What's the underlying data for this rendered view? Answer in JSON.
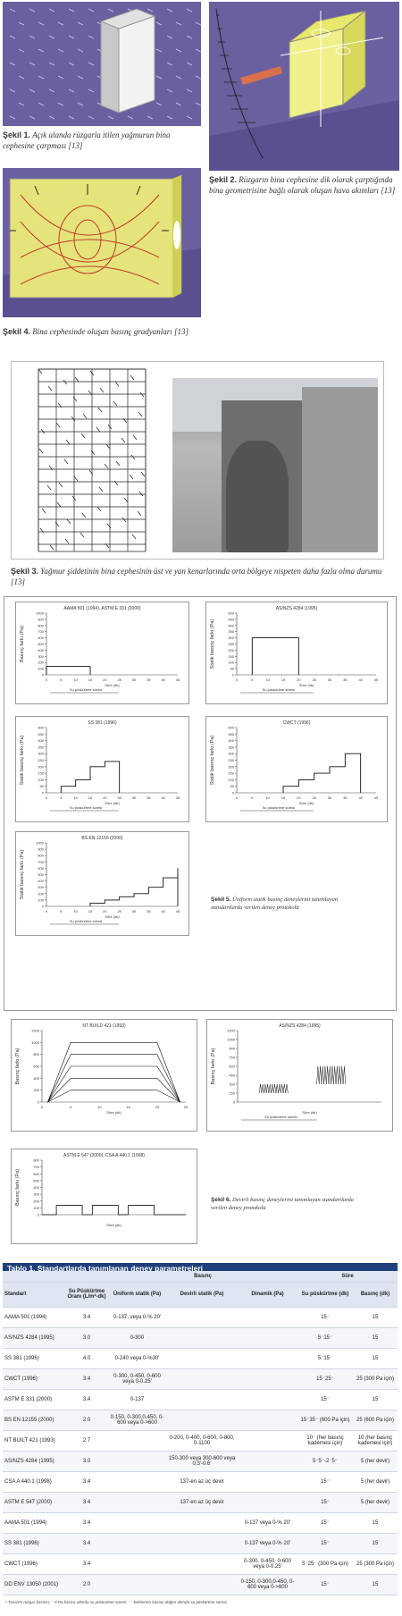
{
  "figures": {
    "fig1": {
      "label": "Şekil 1.",
      "text": "Açık alanda rüzgarla itilen yağmurun bina cephesine çarpması [13]"
    },
    "fig2": {
      "label": "Şekil 2.",
      "text": "Rüzgarın bina cephesine dik olarak çarptığında bina geometrisine bağlı olarak oluşan hava akımları [13]"
    },
    "fig4": {
      "label": "Şekil 4.",
      "text": "Bina cephesinde oluşan basınç gradyanları [13]"
    },
    "fig3": {
      "label": "Şekil 3.",
      "text": "Yağmur şiddetinin bina cephesinin üst ve yan kenarlarında orta bölgeye nispeten daha fazla olma durumu [13]"
    },
    "fig5": {
      "label": "Şekil 5.",
      "text": "Üniform statik basınç deneylerini tanımlayan standartlarda verilen deney protokolü"
    },
    "fig6": {
      "label": "Şekil 6.",
      "text": "Devirli basınç deneylerini tanımlayan standartlarda verilen deney protokolü"
    }
  },
  "fig5_charts": [
    {
      "title": "AAMA 501 (1994), ASTM E 331 (2000)",
      "ylabel": "Basınç farkı (Pa)",
      "xlabel": "Süre (dk)",
      "yticks": [
        "0",
        "100",
        "200",
        "300",
        "400",
        "500",
        "600",
        "700",
        "800",
        "900",
        "1000"
      ],
      "xticks": [
        "0",
        "5",
        "10",
        "15",
        "20",
        "25",
        "30",
        "35",
        "40",
        "45"
      ],
      "note": "Su püskürtme süresi",
      "steps": [
        [
          0,
          15,
          137
        ]
      ]
    },
    {
      "title": "AS/NZS 4284 (1995)",
      "ylabel": "Statik basınç farkı (Pa)",
      "xlabel": "Süre (dk)",
      "yticks": [
        "0",
        "50",
        "100",
        "150",
        "200",
        "250",
        "300",
        "350",
        "400",
        "450",
        "500"
      ],
      "xticks": [
        "0",
        "5",
        "10",
        "15",
        "20",
        "25",
        "30",
        "35",
        "40",
        "45"
      ],
      "note": "Su püskürtme süresi",
      "steps": [
        [
          5,
          20,
          300
        ]
      ]
    },
    {
      "title": "SS 381 (1996)",
      "ylabel": "Statik basınç farkı (Pa)",
      "xlabel": "Süre (dk)",
      "yticks": [
        "0",
        "50",
        "100",
        "150",
        "200",
        "250",
        "300",
        "350",
        "400",
        "450",
        "500"
      ],
      "xticks": [
        "0",
        "5",
        "10",
        "15",
        "20",
        "25",
        "30",
        "35",
        "40",
        "45"
      ],
      "note": "Su püskürtme süresi",
      "steps": [
        [
          5,
          10,
          50
        ],
        [
          10,
          15,
          100
        ],
        [
          15,
          20,
          200
        ],
        [
          20,
          25,
          240
        ]
      ]
    },
    {
      "title": "CWCT (1996)",
      "ylabel": "Statik basınç farkı (Pa)",
      "xlabel": "Süre (dk)",
      "yticks": [
        "0",
        "50",
        "100",
        "150",
        "200",
        "250",
        "300",
        "350",
        "400",
        "450",
        "500"
      ],
      "xticks": [
        "0",
        "5",
        "10",
        "15",
        "20",
        "25",
        "30",
        "35",
        "40",
        "45"
      ],
      "note": "Su püskürtme süresi",
      "steps": [
        [
          15,
          20,
          50
        ],
        [
          20,
          25,
          100
        ],
        [
          25,
          30,
          150
        ],
        [
          30,
          35,
          200
        ],
        [
          35,
          40,
          300
        ]
      ]
    },
    {
      "title": "BS EN 12155 (2000)",
      "ylabel": "Statik basınç farkı (Pa)",
      "xlabel": "Süre (dk)",
      "yticks": [
        "0",
        "100",
        "200",
        "300",
        "400",
        "500",
        "600",
        "700",
        "800",
        "900",
        "1000"
      ],
      "xticks": [
        "0",
        "5",
        "10",
        "15",
        "20",
        "25",
        "30",
        "35",
        "40",
        "45"
      ],
      "note": "Su püskürtme süresi",
      "steps": [
        [
          15,
          20,
          50
        ],
        [
          20,
          25,
          100
        ],
        [
          25,
          30,
          150
        ],
        [
          30,
          35,
          200
        ],
        [
          35,
          40,
          300
        ],
        [
          40,
          45,
          450
        ],
        [
          45,
          50,
          600
        ]
      ]
    }
  ],
  "fig6_charts": [
    {
      "title": "NT BUILD 421 (1993)",
      "ylabel": "Basınç farkı (Pa)",
      "xlabel": "Süre (dk)",
      "yticks": [
        "0",
        "200",
        "400",
        "600",
        "800",
        "1000",
        "1200"
      ],
      "xticks": [
        "0",
        "5",
        "10",
        "15",
        "20",
        "25"
      ]
    },
    {
      "title": "AS/NZS 4284 (1995)",
      "ylabel": "Basınç farkı (Pa)",
      "xlabel": "Süre (dk)",
      "yticks": [
        "0",
        "150",
        "300",
        "450",
        "600",
        "750",
        "900",
        "1050",
        "1200"
      ],
      "xticks": [],
      "note": "Su püskürtme süresi"
    },
    {
      "title": "ASTM E 547 (2000), CSA A 440.1 (1998)",
      "ylabel": "Basınç farkı (Pa)",
      "xlabel": "Süre (dk)",
      "yticks": [
        "0",
        "100",
        "200",
        "300",
        "400",
        "500",
        "600",
        "700",
        "800"
      ],
      "xticks": []
    }
  ],
  "table": {
    "title": "Tablo 1. Standartlarda tanımlanan deney parametreleri",
    "group_basinc": "Basınç",
    "group_sure": "Süre",
    "headers": [
      "Standart",
      "Su Püskürtme Oranı (L/m²-dk)",
      "Üniform statik (Pa)",
      "Devirli statik (Pa)",
      "Dinamik (Pa)",
      "Su püskürtme (dk)",
      "Basınç (dk)"
    ],
    "rows": [
      [
        "AAMA 501 (1994)",
        "3.4",
        "0-137, veya 0-% 20'",
        "",
        "",
        "15⁻",
        "15"
      ],
      [
        "AS/NZS 4284 (1995)",
        "3.0",
        "0-300",
        "",
        "",
        "5⁻15⁻",
        "15"
      ],
      [
        "SS 381 (1996)",
        "4.0",
        "0-240 veya 0-%30'",
        "",
        "",
        "5⁻15⁻",
        "15"
      ],
      [
        "CWCT (1996)",
        "3.4",
        "0-300, 0-450, 0-600 veya 0-0.25'",
        "",
        "",
        "15⁻25⁻",
        "25 (300 Pa için)"
      ],
      [
        "ASTM E 331 (2000)",
        "3.4",
        "0-137",
        "",
        "",
        "15⁻",
        "15"
      ],
      [
        "BS EN 12155 (2000)",
        "2.0",
        "0-150, 0-300,0-450, 0-600 veya 0->600",
        "",
        "",
        "15⁻35⁻ (600 Pa için)",
        "25 (600 Pa için)"
      ],
      [
        "NT BUILT 421 (1993)",
        "2.7",
        "",
        "0-200, 0-400, 0-600, 0-800, 0-1100",
        "",
        "10⁻ (her basınç kademesi için)",
        "10 (her basınç kademesi için)"
      ],
      [
        "AS/NZS 4284 (1995)",
        "3.0",
        "",
        "150-300 veya 300-600 veya 0.3'-0.6'",
        "",
        "5⁻5⁻-2⁻5⁻",
        "5 (her devir)"
      ],
      [
        "CSA A 440.1 (1998)",
        "3.4",
        "",
        "137-en az üç devir",
        "",
        "15⁻",
        "5 (her devir)"
      ],
      [
        "ASTM E 547 (2000)",
        "3.4",
        "",
        "137-en az üç devir",
        "",
        "15⁻",
        "5 (her devir)"
      ],
      [
        "AAMA 501 (1994)",
        "3.4",
        "",
        "",
        "0-137 veya 0-% 20'",
        "15⁻",
        "15"
      ],
      [
        "SS 381 (1996)",
        "3.4",
        "",
        "",
        "0-137 veya 0-% 20'",
        "15⁻",
        "15"
      ],
      [
        "CWCT (1996)",
        "3.4",
        "",
        "",
        "0-300, 0-450, 0-600 veya 0-0.25'",
        "5⁻25⁻ (300 Pa için)",
        "25 (300 Pa için)"
      ],
      [
        "DD ENV 13050 (2001)",
        "2.0",
        "",
        "",
        "0-150, 0-300,0-450, 0-600 veya 0->600",
        "15⁻",
        "15"
      ]
    ],
    "footnote": "* Tasarım rüzgar basıncı; ⁻ 0 Pa basınç altında su püskürtme süresi; ⁻⁻ belirlenen basınç değeri altında su püskürtme süresi"
  },
  "colors": {
    "purple_bg": "#6a5f9f",
    "table_header": "#1f3f7a",
    "box_yellow": "#e8e86a"
  }
}
